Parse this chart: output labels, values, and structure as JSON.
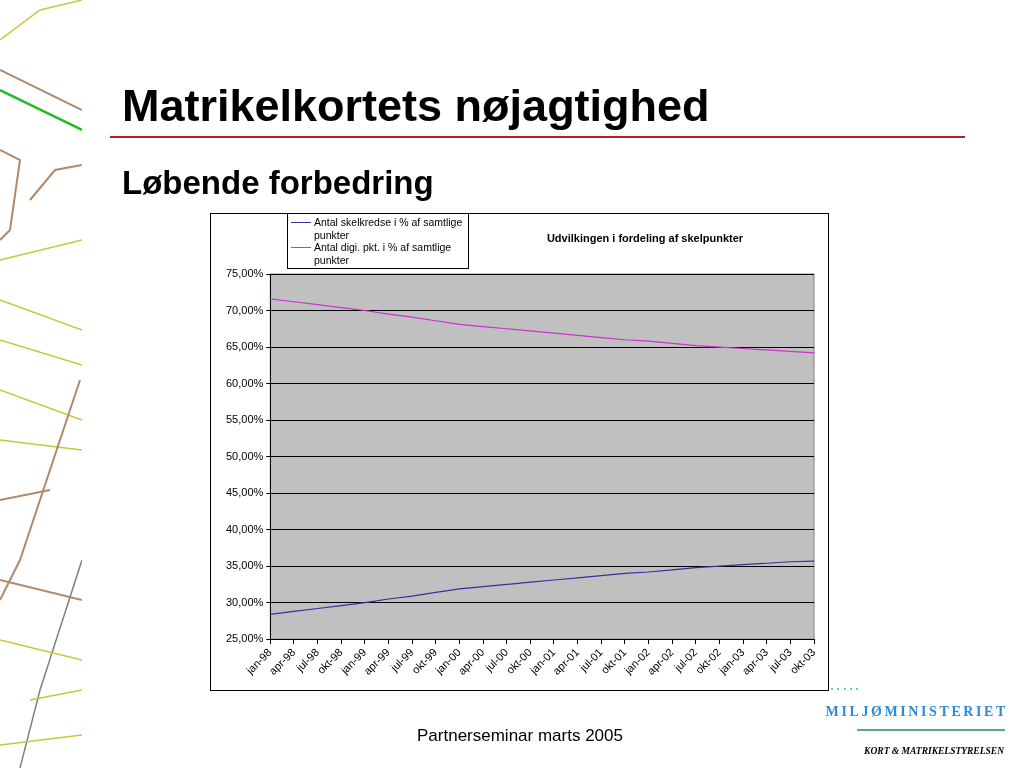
{
  "chart_data": {
    "type": "line",
    "title": "Matrikelkortets nøjagtighed",
    "subtitle": "Løbende forbedring",
    "categories": [
      "jan-98",
      "apr-98",
      "jul-98",
      "okt-98",
      "jan-99",
      "apr-99",
      "jul-99",
      "okt-99",
      "jan-00",
      "apr-00",
      "jul-00",
      "okt-00",
      "jan-01",
      "apr-01",
      "jul-01",
      "okt-01",
      "jan-02",
      "apr-02",
      "jul-02",
      "okt-02",
      "jan-03",
      "apr-03",
      "jul-03",
      "okt-03"
    ],
    "series": [
      {
        "name": "Antal skelkredse i % af samtlige punkter",
        "color": "#333399",
        "values": [
          28.4,
          28.8,
          29.2,
          29.6,
          30.0,
          30.5,
          30.9,
          31.4,
          31.9,
          32.2,
          32.5,
          32.8,
          33.1,
          33.4,
          33.7,
          34.0,
          34.2,
          34.5,
          34.8,
          35.0,
          35.2,
          35.4,
          35.6,
          35.7
        ]
      },
      {
        "name": "Antal digi. pkt. i % af samtlige punkter",
        "color": "#cc33cc",
        "values": [
          71.6,
          71.2,
          70.8,
          70.4,
          70.0,
          69.5,
          69.1,
          68.6,
          68.1,
          67.8,
          67.5,
          67.2,
          66.9,
          66.6,
          66.3,
          66.0,
          65.8,
          65.5,
          65.2,
          65.0,
          64.8,
          64.6,
          64.4,
          64.2
        ]
      }
    ],
    "ylim": [
      25,
      75
    ],
    "yticks": [
      {
        "value": 25,
        "label": "25,00%"
      },
      {
        "value": 30,
        "label": "30,00%"
      },
      {
        "value": 35,
        "label": "35,00%"
      },
      {
        "value": 40,
        "label": "40,00%"
      },
      {
        "value": 45,
        "label": "45,00%"
      },
      {
        "value": 50,
        "label": "50,00%"
      },
      {
        "value": 55,
        "label": "55,00%"
      },
      {
        "value": 60,
        "label": "60,00%"
      },
      {
        "value": 65,
        "label": "65,00%"
      },
      {
        "value": 70,
        "label": "70,00%"
      },
      {
        "value": 75,
        "label": "75,00%"
      }
    ],
    "grid": "y",
    "legend": "top left",
    "marker": "none",
    "line_style": "solid",
    "annotations": [
      "Udvilkingen i fordeling af skelpunkter",
      "Partnerseminar marts 2005",
      "MILJØMINISTERIET",
      "KORT & MATRIKELSTYRELSEN"
    ]
  }
}
